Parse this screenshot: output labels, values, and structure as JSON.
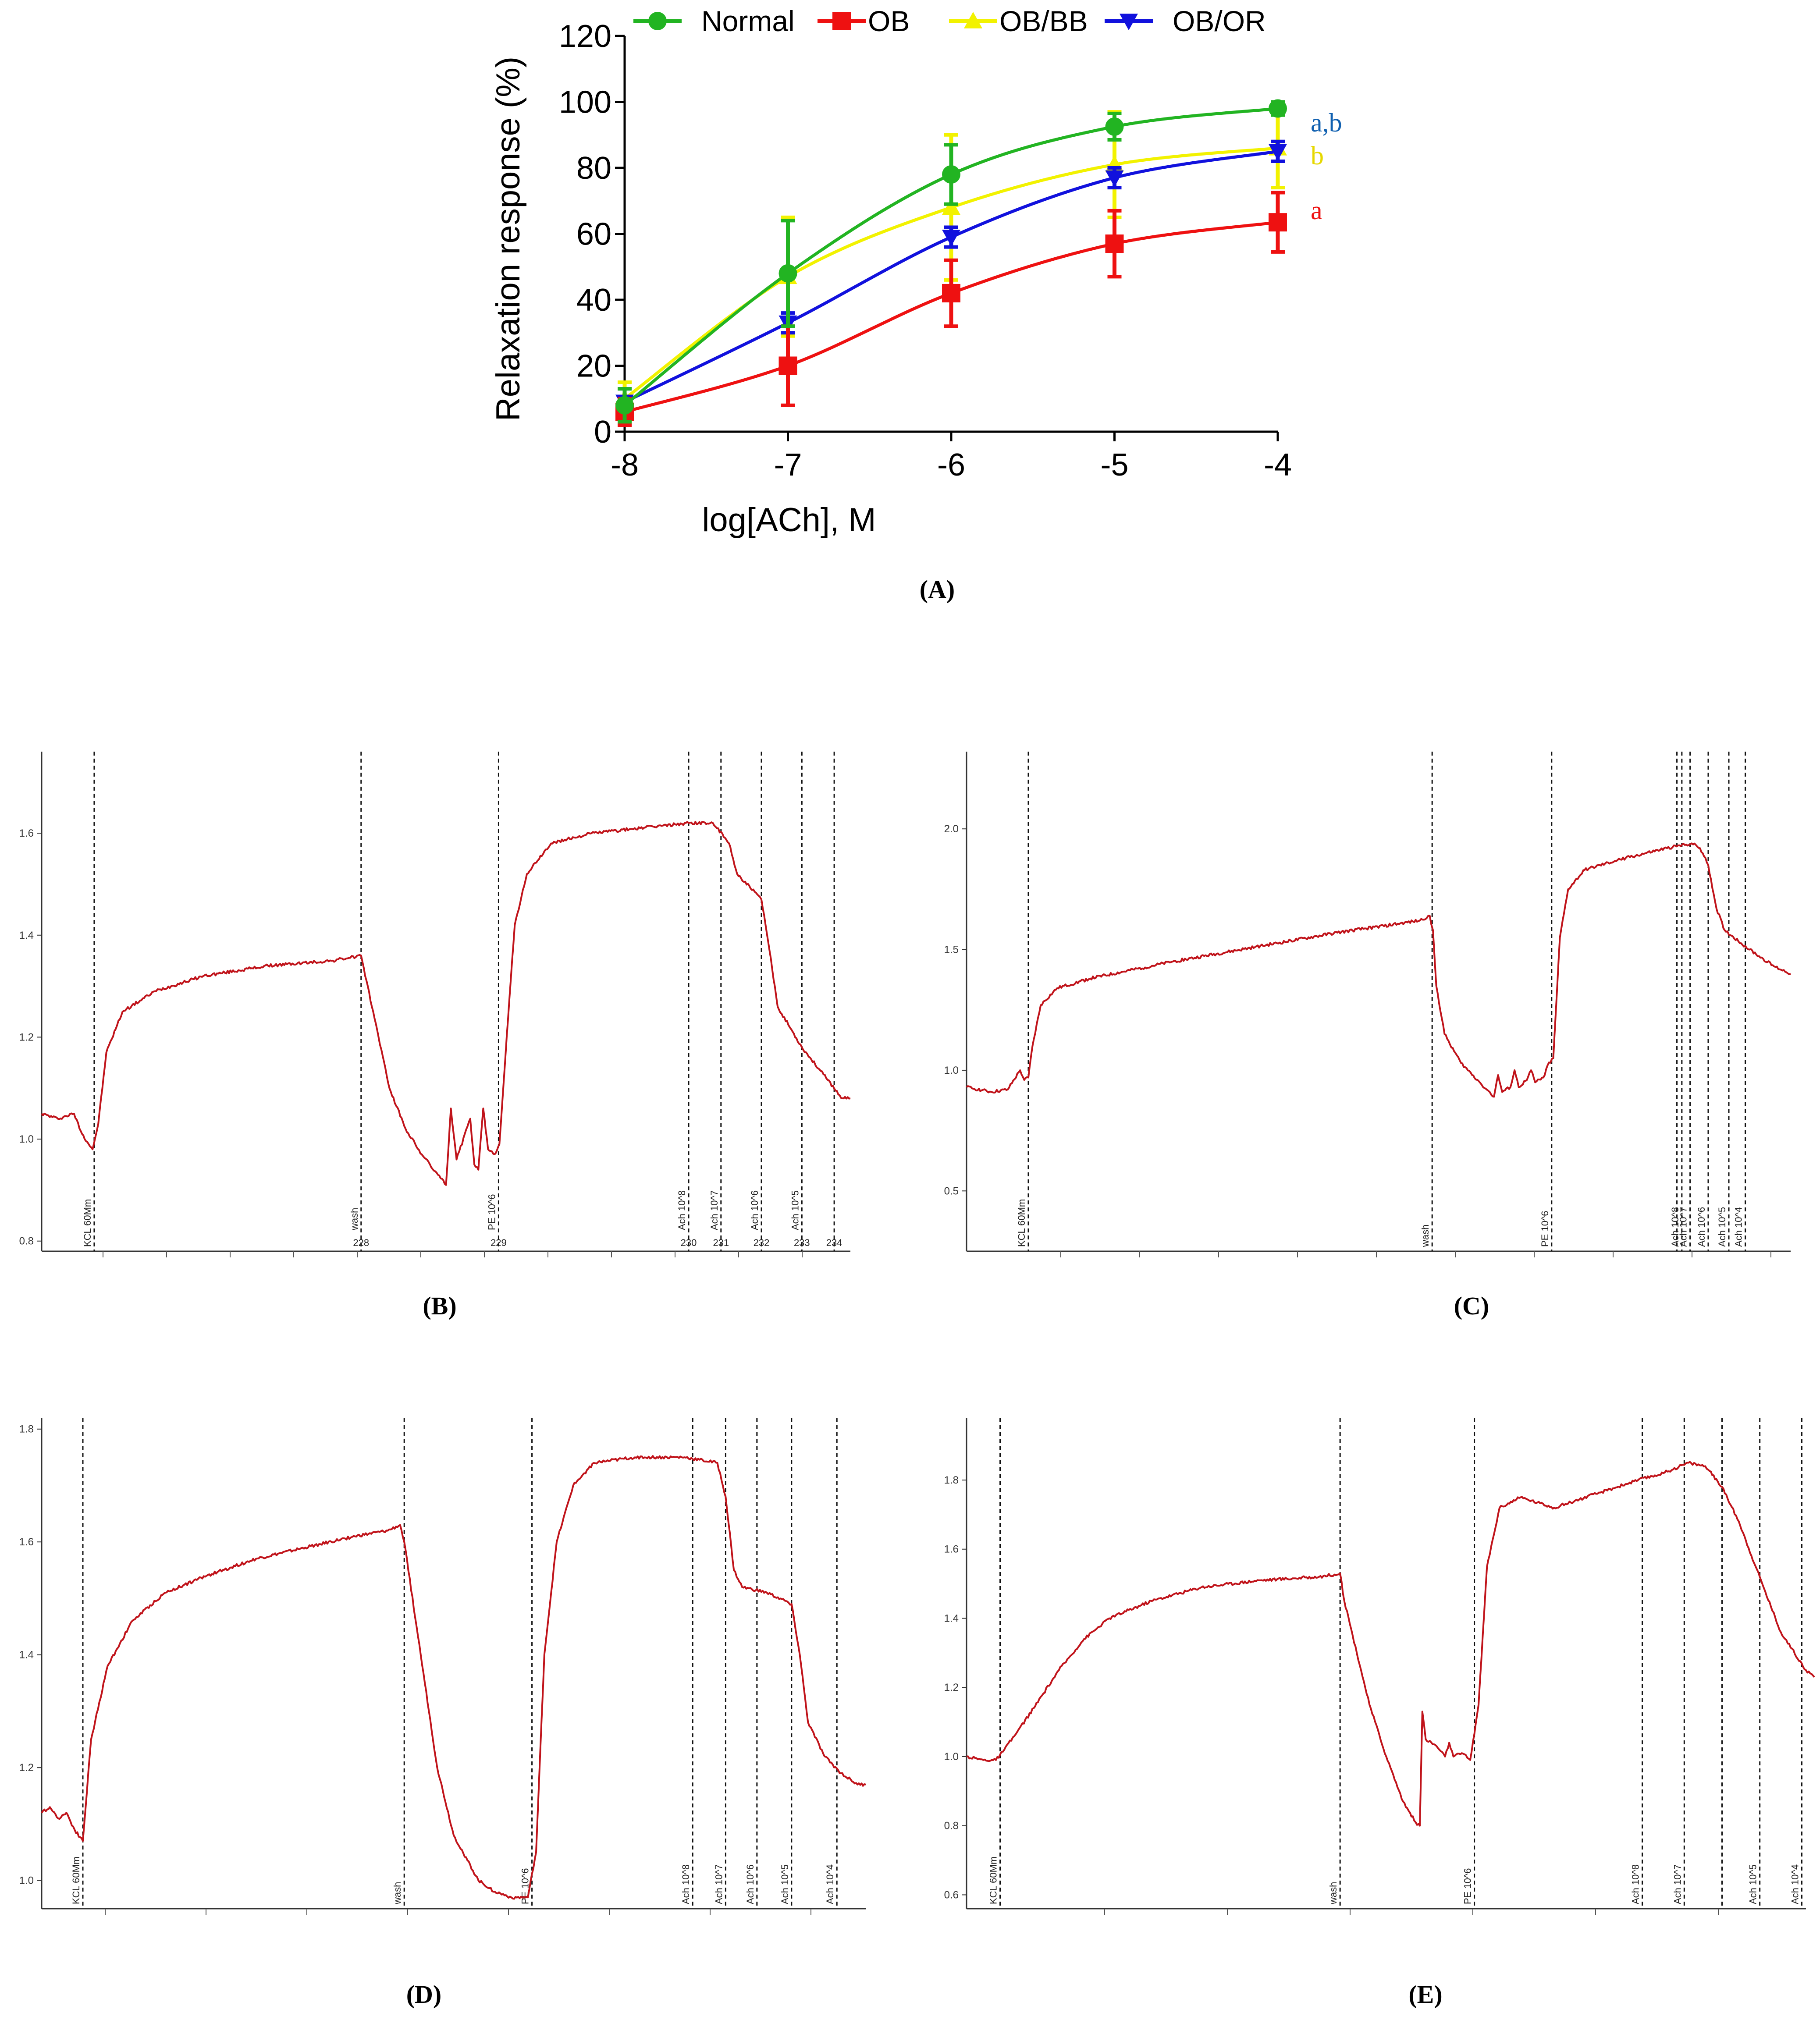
{
  "colors": {
    "normal": "#22B422",
    "ob": "#EE1111",
    "ob_bb": "#F2F200",
    "ob_or": "#1111DD",
    "sig_ab": "#1060B0",
    "sig_b": "#E6D800",
    "sig_a": "#EE1111",
    "trace": "#C0131A"
  },
  "captions": {
    "A": "(A)",
    "B": "(B)",
    "C": "(C)",
    "D": "(D)",
    "E": "(E)"
  },
  "chart_data": [
    {
      "id": "A",
      "type": "line",
      "title": "",
      "xlabel": "log[ACh], M",
      "ylabel": "Relaxation response (%)",
      "x": [
        -8,
        -7,
        -6,
        -5,
        -4
      ],
      "x_tick_labels": [
        "-8",
        "-7",
        "-6",
        "-5",
        "-4"
      ],
      "y_tick_labels": [
        "0",
        "20",
        "40",
        "60",
        "80",
        "100",
        "120"
      ],
      "xlim": [
        -8,
        -4
      ],
      "ylim": [
        0,
        120
      ],
      "legend_position": "top",
      "series": [
        {
          "name": "Normal",
          "marker": "circle",
          "values": [
            8,
            48,
            78,
            92.5,
            98
          ],
          "errors": [
            5,
            16,
            9,
            4,
            2
          ]
        },
        {
          "name": "OB",
          "marker": "square",
          "values": [
            6,
            20,
            42,
            57,
            63.5
          ],
          "errors": [
            4,
            12,
            10,
            10,
            9
          ]
        },
        {
          "name": "OB/BB",
          "marker": "triangle-up",
          "values": [
            10,
            47,
            68,
            81,
            86
          ],
          "errors": [
            5,
            18,
            22,
            16,
            12
          ]
        },
        {
          "name": "OB/OR",
          "marker": "triangle-down",
          "values": [
            9,
            33,
            59,
            77,
            85
          ],
          "errors": [
            4,
            3,
            3,
            3,
            3
          ]
        }
      ],
      "annotations": [
        {
          "text": "a,b",
          "series": "OB/OR"
        },
        {
          "text": "b",
          "series": "OB/BB"
        },
        {
          "text": "a",
          "series": "OB"
        }
      ]
    },
    {
      "id": "B",
      "type": "line",
      "ylim": [
        0.78,
        1.76
      ],
      "y_tick_labels": [
        "0.8",
        "1.0",
        "1.2",
        "1.4",
        "1.6"
      ],
      "xlim": [
        0,
        100
      ],
      "markers": [
        {
          "x": 6.5,
          "label": "KCL 60Mm"
        },
        {
          "x": 39.5,
          "label": "wash",
          "num": "228"
        },
        {
          "x": 56.5,
          "label": "PE 10^6",
          "num": "229"
        },
        {
          "x": 80,
          "label": "Ach 10^8",
          "num": "230"
        },
        {
          "x": 84,
          "label": "Ach 10^7",
          "num": "231"
        },
        {
          "x": 89,
          "label": "Ach 10^6",
          "num": "232"
        },
        {
          "x": 94,
          "label": "Ach 10^5",
          "num": "233"
        },
        {
          "x": 98,
          "label": "",
          "num": "234"
        }
      ],
      "trace": [
        [
          0,
          1.05
        ],
        [
          2,
          1.04
        ],
        [
          4,
          1.05
        ],
        [
          5,
          1.01
        ],
        [
          6.3,
          0.98
        ],
        [
          7,
          1.03
        ],
        [
          8,
          1.17
        ],
        [
          10,
          1.25
        ],
        [
          14,
          1.29
        ],
        [
          20,
          1.32
        ],
        [
          28,
          1.34
        ],
        [
          36,
          1.35
        ],
        [
          39.5,
          1.36
        ],
        [
          40,
          1.32
        ],
        [
          41,
          1.25
        ],
        [
          43,
          1.1
        ],
        [
          45,
          1.02
        ],
        [
          47,
          0.97
        ],
        [
          49,
          0.93
        ],
        [
          50,
          0.91
        ],
        [
          50.6,
          1.06
        ],
        [
          51.3,
          0.96
        ],
        [
          53,
          1.04
        ],
        [
          53.5,
          0.95
        ],
        [
          54,
          0.94
        ],
        [
          54.6,
          1.06
        ],
        [
          55.2,
          0.98
        ],
        [
          56,
          0.97
        ],
        [
          56.6,
          0.99
        ],
        [
          57.5,
          1.2
        ],
        [
          58.5,
          1.42
        ],
        [
          60,
          1.52
        ],
        [
          63,
          1.58
        ],
        [
          68,
          1.6
        ],
        [
          74,
          1.61
        ],
        [
          80,
          1.62
        ],
        [
          83,
          1.62
        ],
        [
          85,
          1.58
        ],
        [
          86,
          1.52
        ],
        [
          89,
          1.47
        ],
        [
          90,
          1.37
        ],
        [
          91,
          1.26
        ],
        [
          94,
          1.18
        ],
        [
          97,
          1.12
        ],
        [
          99,
          1.08
        ],
        [
          100,
          1.08
        ]
      ]
    },
    {
      "id": "C",
      "type": "line",
      "ylim": [
        0.25,
        2.32
      ],
      "y_tick_labels": [
        "0.5",
        "1.0",
        "1.5",
        "2.0"
      ],
      "xlim": [
        0,
        100
      ],
      "markers": [
        {
          "x": 7.5,
          "label": "KCL 60Mm"
        },
        {
          "x": 56.5,
          "label": "wash"
        },
        {
          "x": 71,
          "label": "PE 10^6"
        },
        {
          "x": 86.2,
          "label": ""
        },
        {
          "x": 86.8,
          "label": "Ach 10^8"
        },
        {
          "x": 87.8,
          "label": "Ach 10^7"
        },
        {
          "x": 90,
          "label": "Ach 10^6"
        },
        {
          "x": 92.5,
          "label": "Ach 10^5"
        },
        {
          "x": 94.5,
          "label": "Ach 10^4"
        }
      ],
      "trace": [
        [
          0,
          0.93
        ],
        [
          3,
          0.91
        ],
        [
          5,
          0.92
        ],
        [
          6.5,
          1.0
        ],
        [
          7,
          0.96
        ],
        [
          7.5,
          0.97
        ],
        [
          8,
          1.1
        ],
        [
          9,
          1.27
        ],
        [
          11,
          1.34
        ],
        [
          15,
          1.38
        ],
        [
          25,
          1.45
        ],
        [
          35,
          1.51
        ],
        [
          45,
          1.57
        ],
        [
          55,
          1.62
        ],
        [
          56.2,
          1.64
        ],
        [
          56.6,
          1.58
        ],
        [
          57,
          1.35
        ],
        [
          58,
          1.15
        ],
        [
          60,
          1.03
        ],
        [
          62,
          0.96
        ],
        [
          64,
          0.89
        ],
        [
          64.5,
          0.98
        ],
        [
          65,
          0.91
        ],
        [
          66,
          0.93
        ],
        [
          66.5,
          1.0
        ],
        [
          67,
          0.93
        ],
        [
          68,
          0.96
        ],
        [
          68.5,
          1.0
        ],
        [
          69,
          0.95
        ],
        [
          70,
          0.97
        ],
        [
          70.5,
          1.02
        ],
        [
          71.2,
          1.05
        ],
        [
          72,
          1.55
        ],
        [
          73,
          1.75
        ],
        [
          75,
          1.83
        ],
        [
          80,
          1.88
        ],
        [
          85,
          1.92
        ],
        [
          88,
          1.94
        ],
        [
          89,
          1.92
        ],
        [
          90,
          1.85
        ],
        [
          91,
          1.67
        ],
        [
          92,
          1.58
        ],
        [
          95,
          1.5
        ],
        [
          98,
          1.43
        ],
        [
          100,
          1.4
        ]
      ]
    },
    {
      "id": "D",
      "type": "line",
      "ylim": [
        0.95,
        1.82
      ],
      "y_tick_labels": [
        "1.0",
        "1.2",
        "1.4",
        "1.6",
        "1.8"
      ],
      "xlim": [
        0,
        100
      ],
      "markers": [
        {
          "x": 5,
          "label": "KCL 60Mm"
        },
        {
          "x": 44,
          "label": "wash"
        },
        {
          "x": 59.5,
          "label": "PE 10^6"
        },
        {
          "x": 79,
          "label": "Ach 10^8"
        },
        {
          "x": 83,
          "label": "Ach 10^7"
        },
        {
          "x": 86.8,
          "label": "Ach 10^6"
        },
        {
          "x": 91,
          "label": "Ach 10^5"
        },
        {
          "x": 96.5,
          "label": "Ach 10^4"
        }
      ],
      "trace": [
        [
          0,
          1.12
        ],
        [
          1,
          1.13
        ],
        [
          2,
          1.11
        ],
        [
          3,
          1.12
        ],
        [
          4,
          1.09
        ],
        [
          5,
          1.07
        ],
        [
          6,
          1.25
        ],
        [
          8,
          1.38
        ],
        [
          11,
          1.46
        ],
        [
          15,
          1.51
        ],
        [
          20,
          1.54
        ],
        [
          26,
          1.57
        ],
        [
          32,
          1.59
        ],
        [
          38,
          1.61
        ],
        [
          42,
          1.62
        ],
        [
          43.5,
          1.63
        ],
        [
          44,
          1.6
        ],
        [
          46,
          1.4
        ],
        [
          48,
          1.2
        ],
        [
          50,
          1.08
        ],
        [
          53,
          1.0
        ],
        [
          55,
          0.98
        ],
        [
          57,
          0.97
        ],
        [
          59,
          0.97
        ],
        [
          60,
          1.05
        ],
        [
          61,
          1.4
        ],
        [
          62.5,
          1.6
        ],
        [
          64.5,
          1.7
        ],
        [
          67,
          1.74
        ],
        [
          72,
          1.75
        ],
        [
          78,
          1.75
        ],
        [
          82,
          1.74
        ],
        [
          83,
          1.68
        ],
        [
          84,
          1.55
        ],
        [
          85,
          1.52
        ],
        [
          88,
          1.51
        ],
        [
          91,
          1.49
        ],
        [
          92,
          1.4
        ],
        [
          93,
          1.28
        ],
        [
          95,
          1.22
        ],
        [
          97,
          1.19
        ],
        [
          99,
          1.17
        ],
        [
          100,
          1.17
        ]
      ]
    },
    {
      "id": "E",
      "type": "line",
      "ylim": [
        0.56,
        1.98
      ],
      "y_tick_labels": [
        "0.6",
        "0.8",
        "1.0",
        "1.2",
        "1.4",
        "1.6",
        "1.8"
      ],
      "xlim": [
        0,
        100
      ],
      "markers": [
        {
          "x": 4,
          "label": "KCL 60Mm"
        },
        {
          "x": 44.5,
          "label": "wash"
        },
        {
          "x": 60.5,
          "label": "PE 10^6"
        },
        {
          "x": 80.5,
          "label": "Ach 10^8"
        },
        {
          "x": 85.5,
          "label": "Ach 10^7"
        },
        {
          "x": 90,
          "label": ""
        },
        {
          "x": 94.5,
          "label": "Ach 10^5"
        },
        {
          "x": 99.5,
          "label": "Ach 10^4"
        }
      ],
      "trace": [
        [
          0,
          1.0
        ],
        [
          2,
          0.99
        ],
        [
          3.5,
          0.99
        ],
        [
          4.5,
          1.02
        ],
        [
          6,
          1.07
        ],
        [
          8,
          1.14
        ],
        [
          11,
          1.25
        ],
        [
          14,
          1.34
        ],
        [
          17,
          1.4
        ],
        [
          22,
          1.45
        ],
        [
          28,
          1.49
        ],
        [
          35,
          1.51
        ],
        [
          42,
          1.52
        ],
        [
          44.5,
          1.53
        ],
        [
          45,
          1.45
        ],
        [
          46,
          1.35
        ],
        [
          48,
          1.15
        ],
        [
          50,
          1.0
        ],
        [
          52,
          0.87
        ],
        [
          53.5,
          0.81
        ],
        [
          54,
          0.8
        ],
        [
          54.3,
          1.13
        ],
        [
          54.7,
          1.05
        ],
        [
          56,
          1.03
        ],
        [
          57,
          1.0
        ],
        [
          57.5,
          1.04
        ],
        [
          58,
          1.0
        ],
        [
          59,
          1.01
        ],
        [
          60,
          0.99
        ],
        [
          61,
          1.15
        ],
        [
          62,
          1.55
        ],
        [
          63.5,
          1.72
        ],
        [
          66,
          1.75
        ],
        [
          70,
          1.72
        ],
        [
          75,
          1.76
        ],
        [
          80,
          1.8
        ],
        [
          83,
          1.82
        ],
        [
          86,
          1.85
        ],
        [
          88,
          1.84
        ],
        [
          90,
          1.78
        ],
        [
          92,
          1.68
        ],
        [
          94,
          1.55
        ],
        [
          97,
          1.36
        ],
        [
          100,
          1.25
        ],
        [
          101,
          1.23
        ]
      ]
    }
  ]
}
